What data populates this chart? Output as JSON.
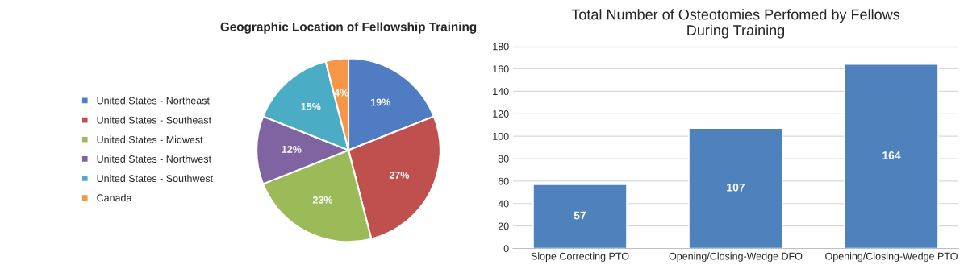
{
  "chart_data": [
    {
      "type": "pie",
      "title": "Geographic Location of Fellowship Training",
      "categories": [
        "United States - Northeast",
        "United States - Southeast",
        "United States - Midwest",
        "United States - Northwest",
        "United States - Southwest",
        "Canada"
      ],
      "values": [
        19,
        27,
        23,
        12,
        15,
        4
      ],
      "colors": [
        "#4f7cc3",
        "#c0504d",
        "#9bbb59",
        "#8064a2",
        "#4bacc6",
        "#f79646"
      ],
      "value_labels": [
        "19%",
        "27%",
        "23%",
        "12%",
        "15%",
        "4%"
      ],
      "legend": "left"
    },
    {
      "type": "bar",
      "title": "Total Number of Osteotomies Perfomed by Fellows\nDuring Training",
      "categories": [
        "Slope Correcting PTO",
        "Opening/Closing-Wedge DFO",
        "Opening/Closing-Wedge PTO"
      ],
      "values": [
        57,
        107,
        164
      ],
      "color": "#4f81bd",
      "ylim": [
        0,
        180
      ],
      "yticks": [
        0,
        20,
        40,
        60,
        80,
        100,
        120,
        140,
        160,
        180
      ],
      "grid": "y",
      "data_labels": true
    }
  ]
}
